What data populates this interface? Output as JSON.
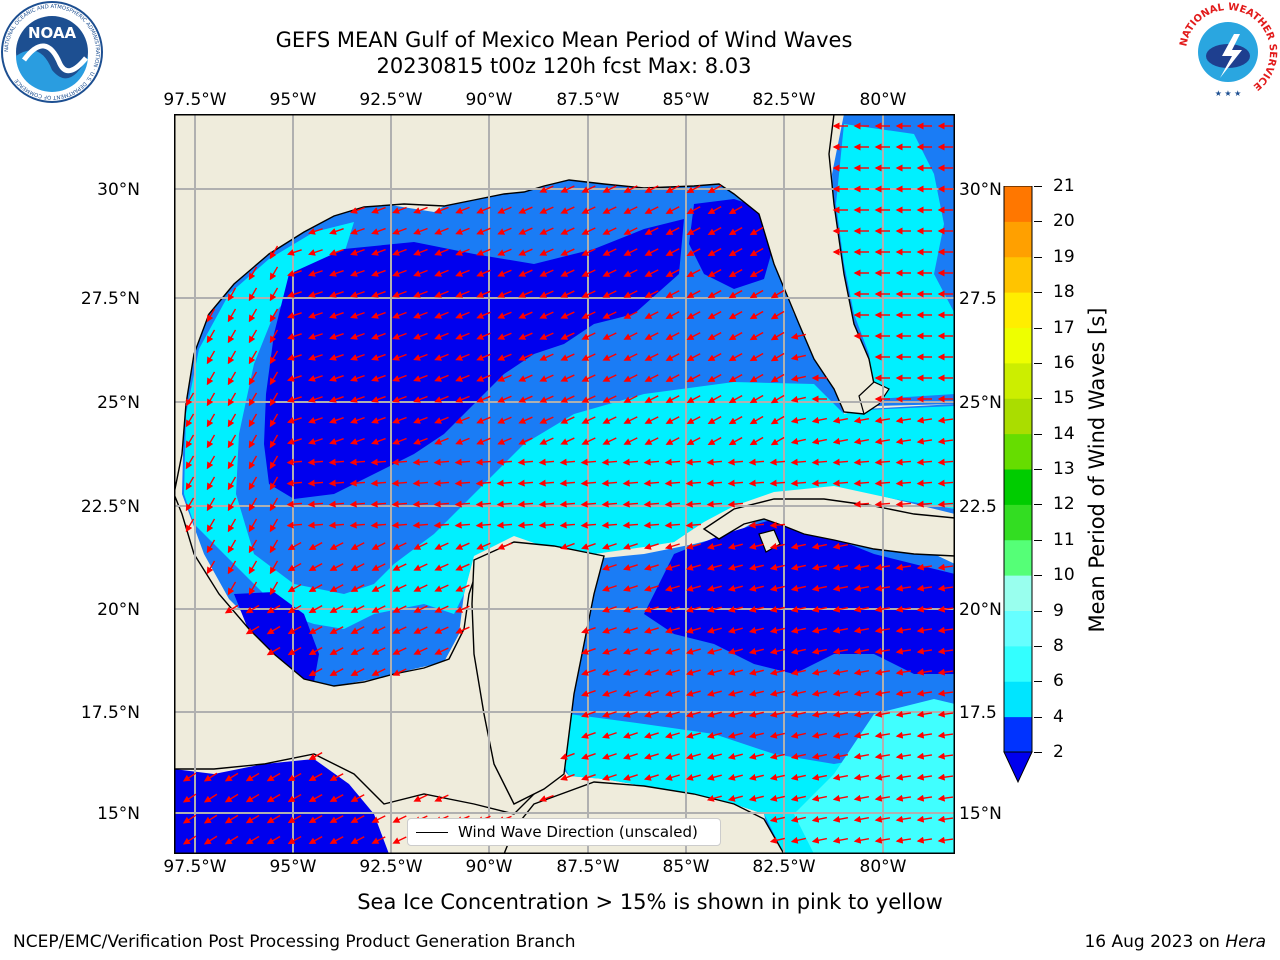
{
  "title_line1": "GEFS MEAN Gulf of Mexico Mean Period of Wind Waves",
  "title_line2": "20230815 t00z 120h fcst   Max: 8.03",
  "lon_ticks": [
    "97.5°W",
    "95°W",
    "92.5°W",
    "90°W",
    "87.5°W",
    "85°W",
    "82.5°W",
    "80°W"
  ],
  "lat_ticks_left": [
    "30°N",
    "27.5°N",
    "25°N",
    "22.5°N",
    "20°N",
    "17.5°N",
    "15°N"
  ],
  "lat_ticks_right": [
    "30°N",
    "27.5",
    "25°N",
    "22.5",
    "20°N",
    "17.5",
    "15°N"
  ],
  "colorbar": {
    "label": "Mean Period of Wind Waves [s]",
    "ticks": [
      "2",
      "4",
      "6",
      "8",
      "9",
      "10",
      "11",
      "12",
      "13",
      "14",
      "15",
      "16",
      "17",
      "18",
      "19",
      "20",
      "21"
    ],
    "colors": [
      "#0033ff",
      "#00e5ff",
      "#33ffff",
      "#66ffff",
      "#99ffee",
      "#55ff77",
      "#33dd22",
      "#00cc00",
      "#66dd00",
      "#aadd00",
      "#ccee00",
      "#eeff00",
      "#ffee00",
      "#ffc400",
      "#ffa000",
      "#ff7700",
      "#ff4400",
      "#ff1100"
    ],
    "extend_color": "#0000ee"
  },
  "legend_label": "Wind Wave Direction (unscaled)",
  "footnote": "Sea Ice Concentration > 15% is shown in pink to yellow",
  "footer_left": "NCEP/EMC/Verification Post Processing Product Generation Branch",
  "footer_right_prefix": "16 Aug 2023 on ",
  "footer_right_host": "Hera",
  "logo_noaa": "NOAA",
  "logo_noaa_ring": "NATIONAL OCEANIC AND ATMOSPHERIC ADMINISTRATION · U.S. DEPARTMENT OF COMMERCE",
  "logo_nws_ring": "NATIONAL WEATHER SERVICE",
  "colors": {
    "land": "#efecdc",
    "dark_blue": "#0000ee",
    "blue": "#1a7cf5",
    "cyan": "#00f0ff",
    "light_cyan": "#40ffff",
    "arrow": "#ff0000"
  }
}
